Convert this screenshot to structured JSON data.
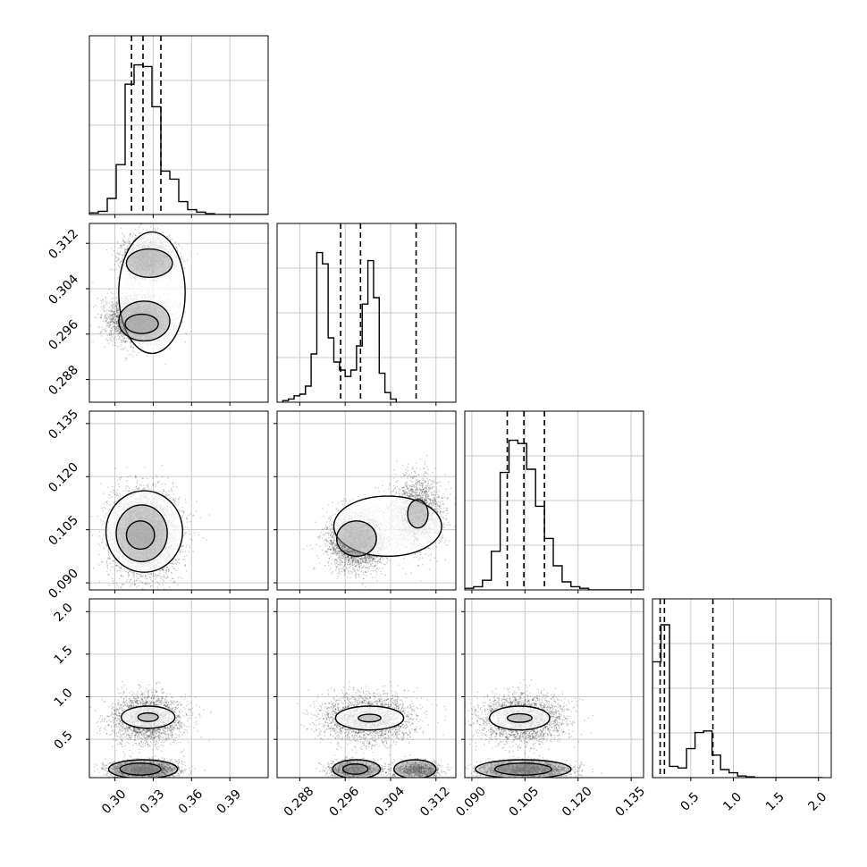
{
  "chart_data": {
    "type": "corner",
    "colors": {
      "line": "#000000",
      "grid": "#c8c8c8",
      "points": "#000000",
      "frame": "#000000"
    },
    "grid": true,
    "params": [
      {
        "range": [
          0.28,
          0.42
        ],
        "ticks": [
          0.3,
          0.33,
          0.36,
          0.39
        ],
        "tick_labels": [
          "0.30",
          "0.33",
          "0.36",
          "0.39"
        ]
      },
      {
        "range": [
          0.284,
          0.3155
        ],
        "ticks": [
          0.288,
          0.296,
          0.304,
          0.312
        ],
        "tick_labels": [
          "0.288",
          "0.296",
          "0.304",
          "0.312"
        ]
      },
      {
        "range": [
          0.088,
          0.1385
        ],
        "ticks": [
          0.09,
          0.105,
          0.12,
          0.135
        ],
        "tick_labels": [
          "0.090",
          "0.105",
          "0.120",
          "0.135"
        ]
      },
      {
        "range": [
          0.05,
          2.15
        ],
        "ticks": [
          0.5,
          1.0,
          1.5,
          2.0
        ],
        "tick_labels": [
          "0.5",
          "1.0",
          "1.5",
          "2.0"
        ]
      }
    ],
    "histograms": [
      {
        "edges_start": 0.28,
        "bin_width": 0.007,
        "counts": [
          0.01,
          0.02,
          0.1,
          0.31,
          0.81,
          0.93,
          0.92,
          0.67,
          0.27,
          0.22,
          0.08,
          0.03,
          0.015,
          0.005,
          0.0,
          0.0,
          0.0,
          0.0,
          0.0,
          0.0
        ],
        "quantiles": [
          0.313,
          0.322,
          0.336
        ],
        "ymax": 1.0
      },
      {
        "edges_start": 0.285,
        "bin_width": 0.001,
        "counts": [
          0.01,
          0.02,
          0.04,
          0.05,
          0.1,
          0.3,
          0.93,
          0.86,
          0.4,
          0.25,
          0.2,
          0.16,
          0.2,
          0.35,
          0.61,
          0.88,
          0.65,
          0.18,
          0.06,
          0.02
        ],
        "quantiles": [
          0.2952,
          0.2987,
          0.3085
        ],
        "ymax": 1.0
      },
      {
        "edges_start": 0.088,
        "bin_width": 0.0025,
        "counts": [
          0.01,
          0.02,
          0.06,
          0.24,
          0.73,
          0.93,
          0.91,
          0.75,
          0.52,
          0.32,
          0.15,
          0.05,
          0.02,
          0.01,
          0.0,
          0.0,
          0.0,
          0.0,
          0.0,
          0.0
        ],
        "quantiles": [
          0.1,
          0.1047,
          0.1105
        ],
        "ymax": 1.0
      },
      {
        "edges_start": 0.05,
        "bin_width": 0.1,
        "counts": [
          0.72,
          0.95,
          0.07,
          0.06,
          0.18,
          0.28,
          0.29,
          0.14,
          0.05,
          0.03,
          0.01,
          0.005,
          0.0,
          0.0,
          0.0,
          0.0,
          0.0,
          0.0,
          0.0,
          0.0
        ],
        "quantiles": [
          0.14,
          0.19,
          0.76
        ],
        "ymax": 1.0
      }
    ],
    "scatter_panels": [
      {
        "x": 0,
        "y": 1,
        "blobs": [
          {
            "cx": 0.325,
            "cy": 0.3095,
            "sx": 0.01,
            "sy": 0.0018,
            "n": 2200
          },
          {
            "cx": 0.318,
            "cy": 0.2985,
            "sx": 0.012,
            "sy": 0.002,
            "n": 3200
          }
        ],
        "contours": [
          {
            "cx": 0.329,
            "cy": 0.3033,
            "rx": 0.026,
            "ry": 0.0107
          },
          {
            "cx": 0.327,
            "cy": 0.3085,
            "rx": 0.018,
            "ry": 0.0025
          },
          {
            "cx": 0.323,
            "cy": 0.2983,
            "rx": 0.02,
            "ry": 0.0035
          },
          {
            "cx": 0.321,
            "cy": 0.2978,
            "rx": 0.013,
            "ry": 0.0017
          }
        ]
      },
      {
        "x": 0,
        "y": 2,
        "blobs": [
          {
            "cx": 0.322,
            "cy": 0.104,
            "sx": 0.013,
            "sy": 0.006,
            "n": 4500
          }
        ],
        "contours": [
          {
            "cx": 0.323,
            "cy": 0.1045,
            "rx": 0.03,
            "ry": 0.0115
          },
          {
            "cx": 0.321,
            "cy": 0.104,
            "rx": 0.02,
            "ry": 0.008
          },
          {
            "cx": 0.32,
            "cy": 0.1035,
            "rx": 0.011,
            "ry": 0.004
          }
        ]
      },
      {
        "x": 1,
        "y": 2,
        "blobs": [
          {
            "cx": 0.298,
            "cy": 0.102,
            "sx": 0.0025,
            "sy": 0.004,
            "n": 3000
          },
          {
            "cx": 0.3085,
            "cy": 0.11,
            "sx": 0.0022,
            "sy": 0.005,
            "n": 2000
          }
        ],
        "contours": [
          {
            "cx": 0.3035,
            "cy": 0.106,
            "rx": 0.0095,
            "ry": 0.0085
          },
          {
            "cx": 0.298,
            "cy": 0.1025,
            "rx": 0.0035,
            "ry": 0.005
          },
          {
            "cx": 0.3088,
            "cy": 0.1095,
            "rx": 0.0018,
            "ry": 0.004
          }
        ]
      },
      {
        "x": 0,
        "y": 3,
        "blobs": [
          {
            "cx": 0.325,
            "cy": 0.75,
            "sx": 0.014,
            "sy": 0.14,
            "n": 2500
          },
          {
            "cx": 0.322,
            "cy": 0.15,
            "sx": 0.013,
            "sy": 0.05,
            "n": 2500
          }
        ],
        "contours": [
          {
            "cx": 0.326,
            "cy": 0.76,
            "rx": 0.021,
            "ry": 0.13
          },
          {
            "cx": 0.326,
            "cy": 0.76,
            "rx": 0.008,
            "ry": 0.05
          },
          {
            "cx": 0.322,
            "cy": 0.15,
            "rx": 0.027,
            "ry": 0.11
          },
          {
            "cx": 0.32,
            "cy": 0.15,
            "rx": 0.016,
            "ry": 0.07
          }
        ]
      },
      {
        "x": 1,
        "y": 3,
        "blobs": [
          {
            "cx": 0.3,
            "cy": 0.75,
            "sx": 0.004,
            "sy": 0.14,
            "n": 2500
          },
          {
            "cx": 0.2975,
            "cy": 0.15,
            "sx": 0.0022,
            "sy": 0.05,
            "n": 1300
          },
          {
            "cx": 0.3085,
            "cy": 0.15,
            "sx": 0.002,
            "sy": 0.05,
            "n": 1100
          }
        ],
        "contours": [
          {
            "cx": 0.3003,
            "cy": 0.75,
            "rx": 0.006,
            "ry": 0.14
          },
          {
            "cx": 0.3003,
            "cy": 0.75,
            "rx": 0.002,
            "ry": 0.045
          },
          {
            "cx": 0.298,
            "cy": 0.15,
            "rx": 0.0042,
            "ry": 0.11
          },
          {
            "cx": 0.3083,
            "cy": 0.15,
            "rx": 0.0037,
            "ry": 0.11
          },
          {
            "cx": 0.2978,
            "cy": 0.15,
            "rx": 0.0022,
            "ry": 0.06
          }
        ]
      },
      {
        "x": 2,
        "y": 3,
        "blobs": [
          {
            "cx": 0.104,
            "cy": 0.75,
            "sx": 0.006,
            "sy": 0.14,
            "n": 2500
          },
          {
            "cx": 0.105,
            "cy": 0.15,
            "sx": 0.006,
            "sy": 0.05,
            "n": 2500
          }
        ],
        "contours": [
          {
            "cx": 0.1035,
            "cy": 0.75,
            "rx": 0.0085,
            "ry": 0.14
          },
          {
            "cx": 0.1035,
            "cy": 0.75,
            "rx": 0.0035,
            "ry": 0.05
          },
          {
            "cx": 0.1045,
            "cy": 0.15,
            "rx": 0.0135,
            "ry": 0.11
          },
          {
            "cx": 0.1045,
            "cy": 0.15,
            "rx": 0.008,
            "ry": 0.07
          }
        ]
      }
    ]
  }
}
